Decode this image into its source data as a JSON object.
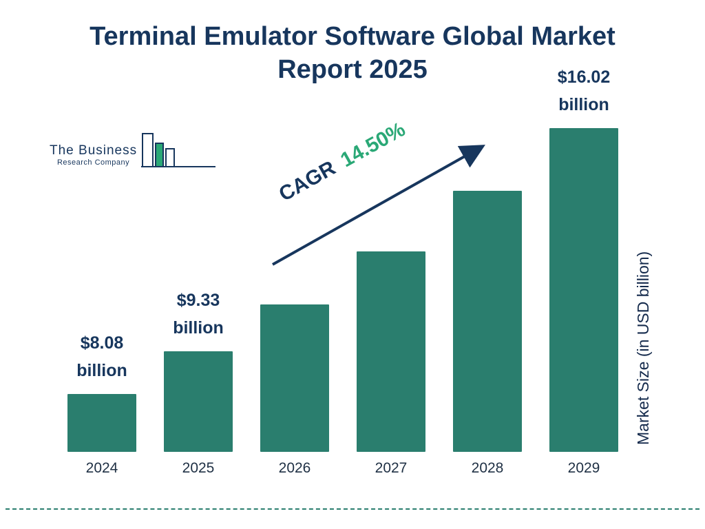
{
  "title": "Terminal Emulator Software Global Market Report 2025",
  "logo": {
    "name_line1": "The Business",
    "name_line2": "Research Company"
  },
  "cagr": {
    "label": "CAGR",
    "value": "14.50%"
  },
  "y_axis_label": "Market Size (in USD billion)",
  "chart_data": {
    "type": "bar",
    "title": "Terminal Emulator Software Global Market Report 2025",
    "categories": [
      "2024",
      "2025",
      "2026",
      "2027",
      "2028",
      "2029"
    ],
    "values": [
      8.08,
      9.33,
      10.68,
      12.23,
      14.0,
      16.02
    ],
    "unit": "USD billion",
    "value_labels": [
      {
        "amount": "$8.08",
        "unit": "billion"
      },
      {
        "amount": "$9.33",
        "unit": "billion"
      },
      null,
      null,
      null,
      {
        "amount": "$16.02",
        "unit": "billion"
      }
    ],
    "xlabel": "",
    "ylabel": "Market Size (in USD billion)",
    "annotation": {
      "label": "CAGR",
      "value": "14.50%"
    },
    "legend": false,
    "grid": false,
    "colors": {
      "bar": "#2a7e6e",
      "title": "#17365d",
      "cagr_value": "#2aa876",
      "arrow": "#17365d",
      "divider": "#2a7e6e"
    }
  }
}
